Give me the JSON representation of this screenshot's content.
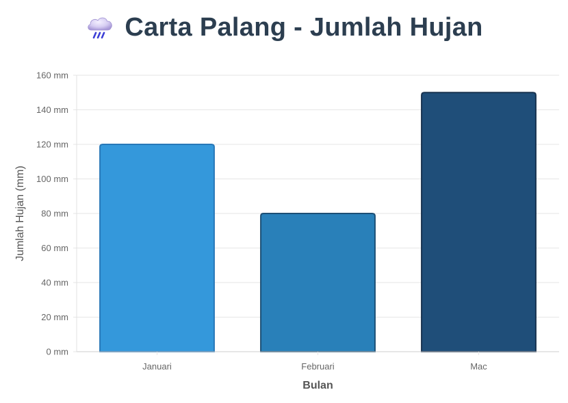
{
  "page": {
    "title": "Carta Palang - Jumlah Hujan",
    "title_icon": "rain-cloud-icon"
  },
  "chart_data": {
    "type": "bar",
    "categories": [
      "Januari",
      "Februari",
      "Mac"
    ],
    "values": [
      120,
      80,
      150
    ],
    "xlabel": "Bulan",
    "ylabel": "Jumlah Hujan (mm)",
    "ylim": [
      0,
      160
    ],
    "yticks": [
      0,
      20,
      40,
      60,
      80,
      100,
      120,
      140,
      160
    ],
    "ytick_suffix": " mm",
    "grid": true,
    "colors": {
      "bars": [
        "#3498db",
        "#2980b9",
        "#1f4e79"
      ],
      "bar_borders": [
        "#2878b8",
        "#1c4f75",
        "#17324f"
      ],
      "title": "#2c3e50",
      "grid": "#e6e6e6",
      "ticks": "#666666"
    }
  }
}
